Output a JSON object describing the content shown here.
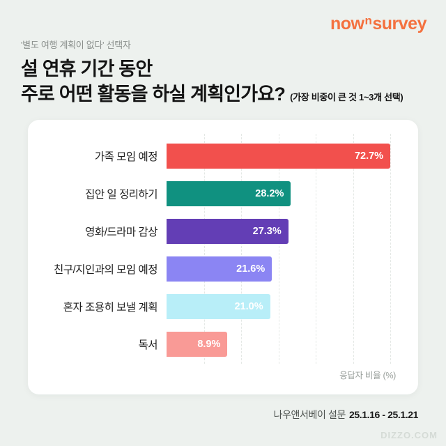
{
  "logo": {
    "part1": "now",
    "part2": "n",
    "part3": "survey"
  },
  "header": {
    "eyebrow": "'별도 여행 계획이 없다' 선택자",
    "title_line1": "설 연휴 기간 동안",
    "title_line2": "주로 어떤 활동을 하실 계획인가요?",
    "title_note": "(가장 비중이 큰 것 1~3개 선택)"
  },
  "chart_data": {
    "type": "bar",
    "orientation": "horizontal",
    "title": "설 연휴 기간 동안 주로 어떤 활동을 하실 계획인가요? (가장 비중이 큰 것 1~3개 선택)",
    "categories": [
      "가족 모임 예정",
      "집안 일 정리하기",
      "영화/드라마 감상",
      "친구/지인과의 모임 예정",
      "혼자 조용히 보낼 계획",
      "독서"
    ],
    "values": [
      72.7,
      28.2,
      27.3,
      21.6,
      21.0,
      8.9
    ],
    "value_labels": [
      "72.7%",
      "28.2%",
      "27.3%",
      "21.6%",
      "21.0%",
      "8.9%"
    ],
    "bar_colors": [
      "#f2504d",
      "#109180",
      "#633eb5",
      "#8b85f3",
      "#b8eef8",
      "#f99a96"
    ],
    "xlabel": "응답자 비율 (%)",
    "ylabel": "",
    "xlim": [
      0,
      80
    ],
    "grid": "dashed-vertical",
    "legend": "none",
    "axis_note": "응답자 비율 (%)"
  },
  "footer": {
    "source_label": "나우앤서베이 설문",
    "date_range": "25.1.16 - 25.1.21",
    "watermark": "DIZZO.COM"
  },
  "colors": {
    "accent": "#f4713f",
    "background": "#edf1ee",
    "card": "#ffffff",
    "grid": "#e4e8e5"
  }
}
